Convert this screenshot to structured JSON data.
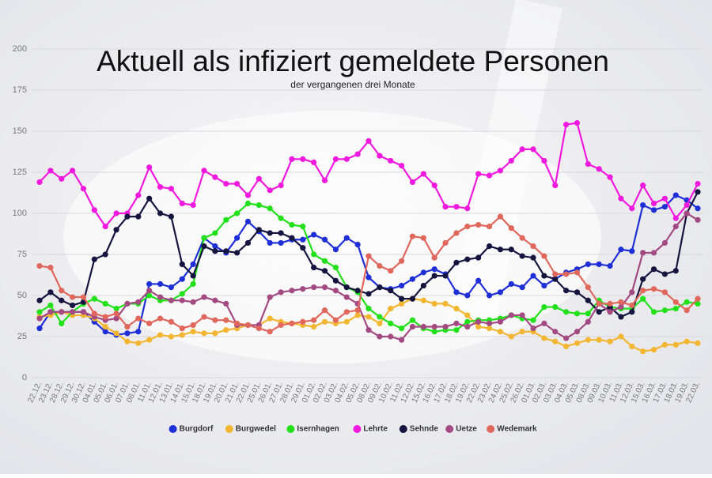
{
  "chart_data": {
    "type": "line",
    "title": "Aktuell als infiziert gemeldete Personen",
    "subtitle": "der vergangenen drei Monate",
    "categories": [
      "22.12.",
      "23.12.",
      "28.12.",
      "29.12.",
      "30.12.",
      "04.01.",
      "05.01.",
      "06.01.",
      "07.01.",
      "08.01.",
      "11.01.",
      "12.01.",
      "13.01.",
      "14.01.",
      "15.01.",
      "18.01.",
      "19.01.",
      "20.01.",
      "21.01.",
      "22.01.",
      "25.01.",
      "26.01.",
      "27.01.",
      "28.01.",
      "29.01.",
      "01.02.",
      "02.02.",
      "03.02.",
      "04.02.",
      "05.02.",
      "08.02.",
      "09.02.",
      "10.02.",
      "11.02.",
      "12.02.",
      "15.02.",
      "16.02.",
      "17.02.",
      "18.02.",
      "19.02.",
      "22.02.",
      "23.02.",
      "24.02.",
      "25.02.",
      "26.02.",
      "01.03.",
      "02.03.",
      "03.03.",
      "04.03.",
      "05.03.",
      "08.03.",
      "09.03.",
      "10.03.",
      "11.03.",
      "12.03.",
      "15.03.",
      "16.03.",
      "17.03.",
      "18.03.",
      "19.03.",
      "22.03."
    ],
    "series": [
      {
        "name": "Burgdorf",
        "color": "#1f2fd6",
        "values": [
          30,
          40,
          40,
          40,
          40,
          34,
          28,
          26,
          27,
          28,
          57,
          57,
          55,
          60,
          69,
          85,
          80,
          76,
          85,
          95,
          89,
          82,
          82,
          84,
          84,
          87,
          84,
          78,
          85,
          81,
          61,
          55,
          54,
          56,
          60,
          64,
          66,
          63,
          52,
          50,
          59,
          50,
          52,
          57,
          55,
          62,
          56,
          60,
          64,
          66,
          69,
          69,
          68,
          78,
          77,
          105,
          102,
          104,
          111,
          108,
          103
        ]
      },
      {
        "name": "Burgwedel",
        "color": "#f2b632",
        "values": [
          37,
          38,
          40,
          38,
          38,
          36,
          31,
          27,
          22,
          21,
          23,
          26,
          25,
          26,
          28,
          27,
          27,
          29,
          30,
          32,
          32,
          36,
          34,
          33,
          32,
          31,
          34,
          33,
          34,
          38,
          37,
          33,
          42,
          45,
          48,
          47,
          45,
          45,
          42,
          38,
          31,
          30,
          28,
          25,
          28,
          28,
          24,
          22,
          19,
          21,
          23,
          23,
          22,
          25,
          19,
          16,
          17,
          20,
          20,
          22,
          21
        ]
      },
      {
        "name": "Isernhagen",
        "color": "#22e01a",
        "values": [
          40,
          44,
          33,
          40,
          45,
          48,
          45,
          42,
          45,
          45,
          50,
          47,
          47,
          51,
          57,
          85,
          88,
          96,
          100,
          106,
          105,
          103,
          97,
          93,
          92,
          75,
          71,
          67,
          55,
          52,
          42,
          37,
          33,
          30,
          35,
          30,
          28,
          29,
          29,
          34,
          35,
          35,
          36,
          38,
          36,
          35,
          43,
          43,
          40,
          39,
          39,
          47,
          43,
          42,
          42,
          48,
          40,
          41,
          42,
          46,
          45
        ]
      },
      {
        "name": "Lehrte",
        "color": "#f01adf",
        "values": [
          119,
          126,
          121,
          126,
          115,
          102,
          92,
          100,
          100,
          111,
          128,
          116,
          115,
          106,
          105,
          126,
          122,
          118,
          118,
          111,
          121,
          114,
          117,
          133,
          133,
          131,
          120,
          133,
          133,
          136,
          144,
          135,
          132,
          129,
          119,
          124,
          117,
          104,
          104,
          103,
          124,
          123,
          126,
          132,
          139,
          139,
          132,
          117,
          154,
          155,
          130,
          127,
          122,
          109,
          103,
          117,
          106,
          109,
          97,
          105,
          118
        ]
      },
      {
        "name": "Sehnde",
        "color": "#15153f",
        "values": [
          47,
          52,
          47,
          44,
          46,
          72,
          75,
          90,
          98,
          98,
          109,
          100,
          98,
          69,
          62,
          80,
          77,
          77,
          76,
          82,
          90,
          88,
          88,
          85,
          79,
          67,
          65,
          59,
          55,
          53,
          51,
          55,
          53,
          48,
          48,
          56,
          62,
          62,
          70,
          72,
          73,
          80,
          78,
          78,
          74,
          73,
          62,
          60,
          53,
          52,
          47,
          40,
          43,
          37,
          40,
          60,
          66,
          63,
          65,
          100,
          113
        ]
      },
      {
        "name": "Uetze",
        "color": "#a34a82",
        "values": [
          36,
          40,
          40,
          40,
          40,
          37,
          35,
          36,
          45,
          46,
          53,
          49,
          47,
          47,
          46,
          49,
          47,
          45,
          32,
          32,
          32,
          49,
          52,
          53,
          54,
          55,
          55,
          53,
          49,
          45,
          29,
          25,
          25,
          23,
          31,
          31,
          31,
          31,
          33,
          31,
          34,
          33,
          34,
          38,
          38,
          30,
          33,
          28,
          24,
          28,
          34,
          45,
          40,
          43,
          52,
          76,
          76,
          82,
          92,
          100,
          96
        ]
      },
      {
        "name": "Wedemark",
        "color": "#e0675c",
        "values": [
          68,
          67,
          53,
          49,
          49,
          39,
          37,
          39,
          31,
          36,
          33,
          36,
          34,
          30,
          32,
          37,
          35,
          35,
          33,
          32,
          30,
          28,
          32,
          33,
          34,
          35,
          41,
          35,
          40,
          41,
          74,
          68,
          65,
          71,
          86,
          85,
          73,
          82,
          88,
          92,
          93,
          92,
          98,
          91,
          85,
          80,
          74,
          63,
          63,
          64,
          55,
          45,
          45,
          46,
          44,
          53,
          54,
          52,
          46,
          41,
          48
        ]
      }
    ],
    "ylim": [
      0,
      200
    ],
    "yticks": [
      0,
      25,
      50,
      75,
      100,
      125,
      150,
      175,
      200
    ],
    "grid": true,
    "legend": "bottom"
  }
}
